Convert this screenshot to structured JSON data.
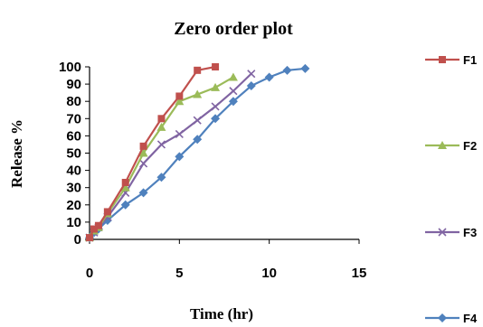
{
  "chart_data": {
    "type": "line",
    "title": "Zero order plot",
    "xlabel": "Time (hr)",
    "ylabel": "Release %",
    "xlim": [
      0,
      15
    ],
    "ylim": [
      0,
      100
    ],
    "xticks": [
      0,
      5,
      10,
      15
    ],
    "yticks": [
      0,
      10,
      20,
      30,
      40,
      50,
      60,
      70,
      80,
      90,
      100
    ],
    "grid": false,
    "legend_position": "right",
    "series": [
      {
        "name": "F1",
        "color": "#c0504d",
        "marker": "square",
        "x": [
          0,
          0.25,
          0.5,
          1,
          2,
          3,
          4,
          5,
          6,
          7
        ],
        "y": [
          1,
          6,
          8,
          16,
          33,
          54,
          70,
          83,
          98,
          100
        ]
      },
      {
        "name": "F2",
        "color": "#9bbb59",
        "marker": "triangle",
        "x": [
          0,
          0.25,
          0.5,
          1,
          2,
          3,
          4,
          5,
          6,
          7,
          8
        ],
        "y": [
          1,
          5,
          7,
          15,
          30,
          50,
          65,
          80,
          84,
          88,
          94
        ]
      },
      {
        "name": "F3",
        "color": "#8064a2",
        "marker": "x",
        "x": [
          0,
          0.25,
          0.5,
          1,
          2,
          3,
          4,
          5,
          6,
          7,
          8,
          9
        ],
        "y": [
          1,
          4,
          7,
          13,
          27,
          44,
          55,
          61,
          69,
          77,
          86,
          96
        ]
      },
      {
        "name": "F4",
        "color": "#4f81bd",
        "marker": "diamond",
        "x": [
          0,
          0.25,
          0.5,
          1,
          2,
          3,
          4,
          5,
          6,
          7,
          8,
          9,
          10,
          11,
          12
        ],
        "y": [
          1,
          4,
          6,
          11,
          20,
          27,
          36,
          48,
          58,
          70,
          80,
          89,
          94,
          98,
          99
        ]
      }
    ]
  }
}
